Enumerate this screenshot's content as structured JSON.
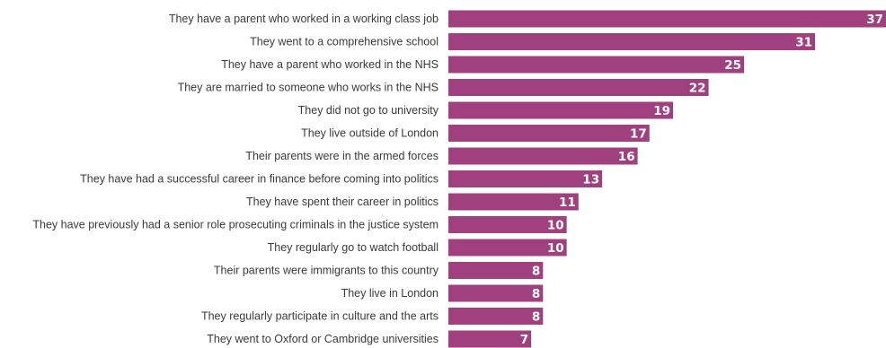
{
  "chart_data": {
    "type": "bar",
    "orientation": "horizontal",
    "title": "",
    "xlabel": "",
    "ylabel": "",
    "grid": false,
    "legend": "none",
    "bar_color": "#a0407f",
    "label_color": "#3a3a3a",
    "value_label_color": "#ffffff",
    "xlim": [
      0,
      37
    ],
    "categories": [
      "They have a parent who worked in a working class job",
      "They went to a comprehensive school",
      "They have a parent who worked in the NHS",
      "They are married to someone who works in the NHS",
      "They did not go to university",
      "They live outside of London",
      "Their parents were in the armed forces",
      "They have had a successful career in finance before coming into politics",
      "They have spent their career in politics",
      "They have previously had a senior role prosecuting criminals in the justice system",
      "They regularly go to watch football",
      "Their parents were immigrants to this country",
      "They live in London",
      "They regularly participate in culture and the arts",
      "They went to Oxford or Cambridge universities"
    ],
    "values": [
      37,
      31,
      25,
      22,
      19,
      17,
      16,
      13,
      11,
      10,
      10,
      8,
      8,
      8,
      7
    ]
  }
}
